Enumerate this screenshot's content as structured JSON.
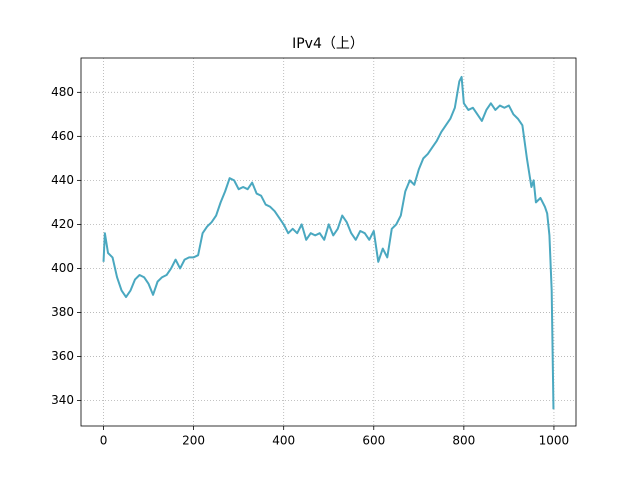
{
  "chart_data": {
    "type": "line",
    "title": "IPv4（上）",
    "x": [
      0,
      3,
      10,
      20,
      30,
      40,
      50,
      60,
      70,
      80,
      90,
      100,
      110,
      120,
      130,
      140,
      150,
      160,
      170,
      180,
      190,
      200,
      210,
      220,
      230,
      240,
      250,
      260,
      270,
      280,
      290,
      300,
      310,
      320,
      330,
      340,
      350,
      360,
      370,
      380,
      390,
      400,
      410,
      420,
      430,
      440,
      450,
      460,
      470,
      480,
      490,
      500,
      510,
      520,
      530,
      540,
      550,
      560,
      570,
      580,
      590,
      600,
      610,
      620,
      630,
      640,
      650,
      660,
      670,
      680,
      690,
      700,
      710,
      720,
      730,
      740,
      750,
      760,
      770,
      780,
      790,
      795,
      800,
      810,
      820,
      830,
      840,
      850,
      860,
      870,
      880,
      890,
      900,
      910,
      920,
      930,
      940,
      950,
      955,
      960,
      970,
      980,
      985,
      990,
      995,
      999
    ],
    "series": [
      {
        "color": "#4aa8c0",
        "values": [
          403,
          416,
          407,
          405,
          396,
          390,
          387,
          390,
          395,
          397,
          396,
          393,
          388,
          394,
          396,
          397,
          400,
          404,
          400,
          404,
          405,
          405,
          406,
          416,
          419,
          421,
          424,
          430,
          435,
          441,
          440,
          436,
          437,
          436,
          439,
          434,
          433,
          429,
          428,
          426,
          423,
          420,
          416,
          418,
          416,
          420,
          413,
          416,
          415,
          416,
          413,
          420,
          415,
          418,
          424,
          421,
          416,
          413,
          417,
          416,
          413,
          417,
          403,
          409,
          405,
          418,
          420,
          424,
          435,
          440,
          438,
          445,
          450,
          452,
          455,
          458,
          462,
          465,
          468,
          473,
          485,
          487,
          475,
          472,
          473,
          470,
          467,
          472,
          475,
          472,
          474,
          473,
          474,
          470,
          468,
          465,
          450,
          437,
          440,
          430,
          432,
          428,
          425,
          415,
          390,
          336
        ]
      }
    ],
    "xlim": [
      -50,
      1049
    ],
    "ylim": [
      328.4,
      495.6
    ],
    "xticks": [
      0,
      200,
      400,
      600,
      800,
      1000
    ],
    "yticks": [
      340,
      360,
      380,
      400,
      420,
      440,
      460,
      480
    ],
    "grid": true
  }
}
